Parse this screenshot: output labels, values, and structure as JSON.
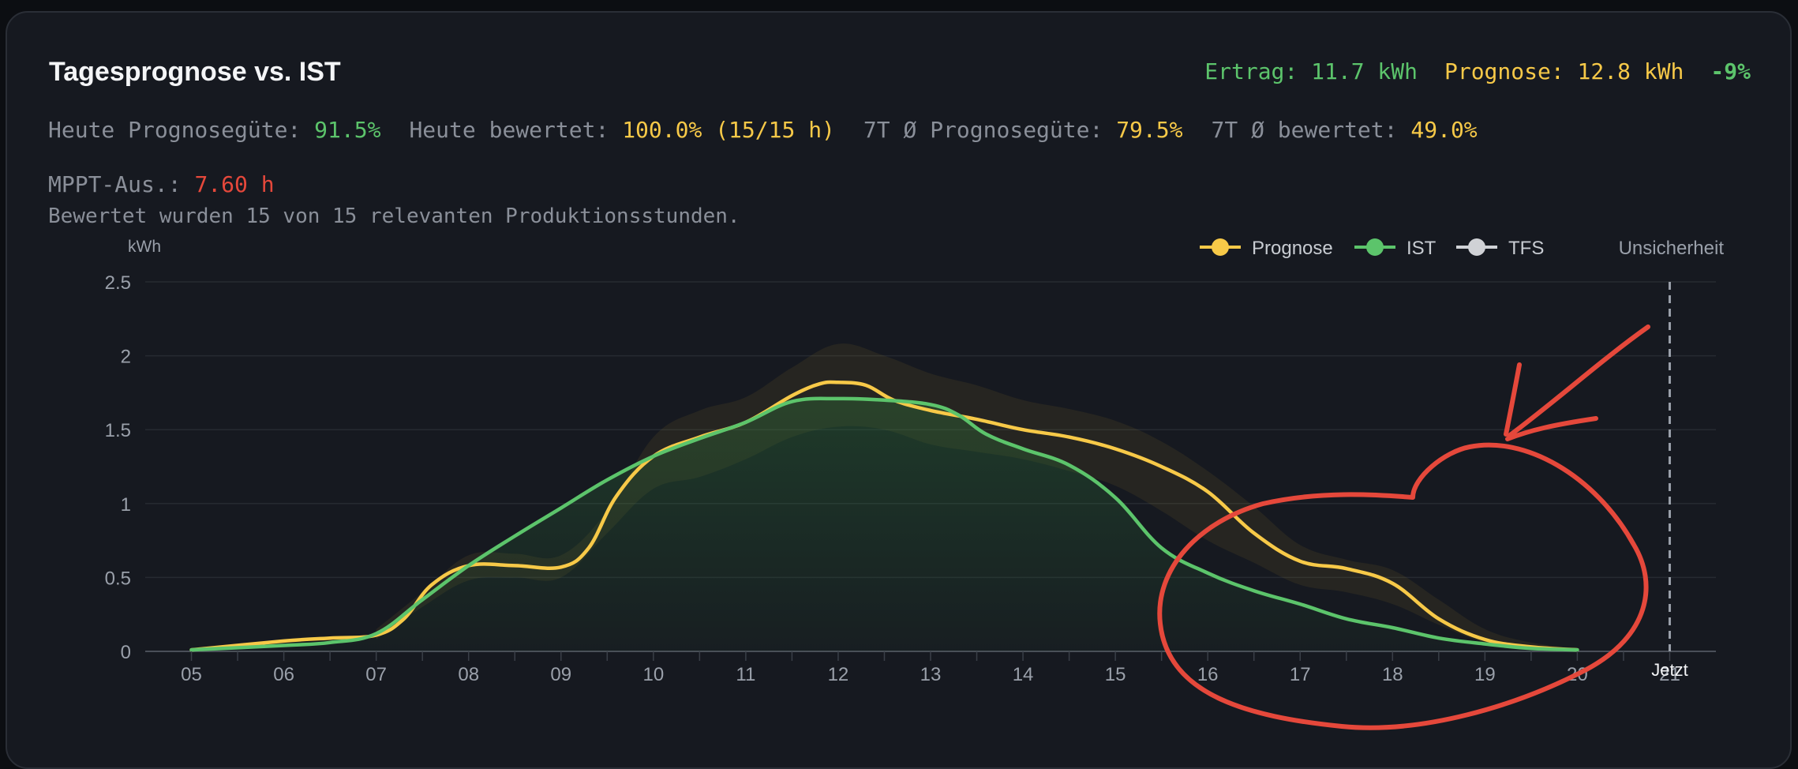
{
  "header": {
    "title": "Tagesprognose vs. IST",
    "ertrag_label": "Ertrag: 11.7 kWh",
    "prognose_label": "Prognose: 12.8 kWh",
    "delta_label": "-9%"
  },
  "stats": {
    "heute_guete_label": "Heute Prognosegüte:",
    "heute_guete_value": "91.5%",
    "heute_bewertet_label": "Heute bewertet:",
    "heute_bewertet_value": "100.0% (15/15 h)",
    "sieben_guete_label": "7T Ø Prognosegüte:",
    "sieben_guete_value": "79.5%",
    "sieben_bewertet_label": "7T Ø bewertet:",
    "sieben_bewertet_value": "49.0%",
    "mppt_label": "MPPT-Aus.:",
    "mppt_value": "7.60 h",
    "note": "Bewertet wurden 15 von 15 relevanten Produktionsstunden."
  },
  "colors": {
    "prognose": "#f7c948",
    "ist": "#5cc46b",
    "tfs": "#d0d2d6",
    "annotation": "#e5483b"
  },
  "chart_data": {
    "type": "line",
    "ylabel": "kWh",
    "ylim": [
      0,
      2.5
    ],
    "yticks": [
      "0",
      "0.5",
      "1",
      "1.5",
      "2",
      "2.5"
    ],
    "yticks_values": [
      0,
      0.5,
      1,
      1.5,
      2,
      2.5
    ],
    "xticks": [
      "05",
      "06",
      "07",
      "08",
      "09",
      "10",
      "11",
      "12",
      "13",
      "14",
      "15",
      "16",
      "17",
      "18",
      "19",
      "20",
      "21"
    ],
    "x_range": [
      4.5,
      21.5
    ],
    "legend": [
      "Prognose",
      "IST",
      "TFS",
      "Unsicherheit"
    ],
    "legend_position": "top-right",
    "now_marker": {
      "x": 21.0,
      "label": "Jetzt"
    },
    "grid": true,
    "series": [
      {
        "name": "Prognose",
        "x": [
          5,
          6,
          6.5,
          7,
          7.3,
          7.6,
          8,
          8.5,
          9,
          9.3,
          9.6,
          10,
          10.5,
          11,
          11.5,
          11.8,
          12,
          12.3,
          12.6,
          13,
          13.5,
          14,
          14.5,
          15,
          15.5,
          16,
          16.5,
          17,
          17.5,
          18,
          18.5,
          19,
          19.5,
          20
        ],
        "values": [
          0.01,
          0.07,
          0.09,
          0.11,
          0.22,
          0.45,
          0.58,
          0.58,
          0.57,
          0.7,
          1.05,
          1.32,
          1.45,
          1.55,
          1.73,
          1.81,
          1.82,
          1.8,
          1.7,
          1.63,
          1.57,
          1.5,
          1.45,
          1.37,
          1.25,
          1.08,
          0.8,
          0.61,
          0.56,
          0.46,
          0.22,
          0.08,
          0.03,
          0.01
        ]
      },
      {
        "name": "IST",
        "x": [
          5,
          6,
          6.5,
          7,
          7.5,
          8,
          8.5,
          9,
          9.5,
          10,
          10.5,
          11,
          11.5,
          12,
          12.5,
          13,
          13.3,
          13.6,
          14,
          14.5,
          15,
          15.5,
          16,
          16.5,
          17,
          17.5,
          18,
          18.5,
          19,
          19.5,
          20
        ],
        "values": [
          0.01,
          0.04,
          0.06,
          0.12,
          0.35,
          0.58,
          0.78,
          0.97,
          1.16,
          1.32,
          1.44,
          1.55,
          1.69,
          1.71,
          1.7,
          1.67,
          1.6,
          1.47,
          1.37,
          1.26,
          1.04,
          0.7,
          0.53,
          0.41,
          0.32,
          0.22,
          0.16,
          0.09,
          0.05,
          0.02,
          0.01
        ]
      }
    ],
    "uncertainty": {
      "name": "Unsicherheit",
      "x": [
        7,
        7.5,
        8,
        8.5,
        9,
        9.5,
        10,
        10.5,
        11,
        11.5,
        12,
        12.5,
        13,
        13.5,
        14,
        14.5,
        15,
        15.5,
        16,
        16.5,
        17,
        17.5,
        18,
        18.5,
        19,
        19.5,
        20
      ],
      "upper": [
        0.15,
        0.4,
        0.65,
        0.66,
        0.65,
        0.95,
        1.45,
        1.63,
        1.72,
        1.92,
        2.08,
        2.0,
        1.88,
        1.8,
        1.7,
        1.64,
        1.56,
        1.42,
        1.22,
        0.98,
        0.72,
        0.62,
        0.55,
        0.35,
        0.15,
        0.06,
        0.02
      ],
      "lower": [
        0.08,
        0.3,
        0.48,
        0.5,
        0.5,
        0.8,
        1.1,
        1.18,
        1.3,
        1.45,
        1.52,
        1.5,
        1.4,
        1.35,
        1.3,
        1.22,
        1.12,
        0.95,
        0.75,
        0.6,
        0.45,
        0.4,
        0.32,
        0.18,
        0.06,
        0.02,
        0.0
      ]
    }
  }
}
